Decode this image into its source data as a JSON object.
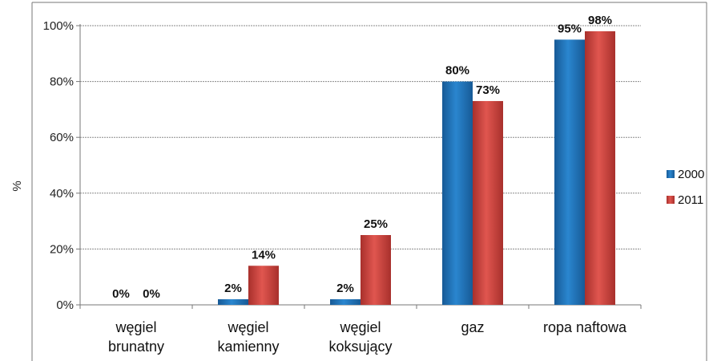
{
  "chart_data": {
    "type": "bar",
    "title": "",
    "xlabel": "",
    "ylabel": "%",
    "ylim": [
      0,
      100
    ],
    "yticks": [
      "0%",
      "20%",
      "40%",
      "60%",
      "80%",
      "100%"
    ],
    "ytick_values": [
      0,
      20,
      40,
      60,
      80,
      100
    ],
    "grid": true,
    "legend_position": "right",
    "categories": [
      [
        "węgiel",
        "brunatny"
      ],
      [
        "węgiel",
        "kamienny"
      ],
      [
        "węgiel",
        "koksujący"
      ],
      [
        "gaz"
      ],
      [
        "ropa naftowa"
      ]
    ],
    "series": [
      {
        "name": "2000",
        "color": "#1f6fb5",
        "values": [
          0,
          2,
          2,
          80,
          95
        ],
        "labels": [
          "0%",
          "2%",
          "2%",
          "80%",
          "95%"
        ]
      },
      {
        "name": "2011",
        "color": "#c8403b",
        "values": [
          0,
          14,
          25,
          73,
          98
        ],
        "labels": [
          "0%",
          "14%",
          "25%",
          "73%",
          "98%"
        ]
      }
    ]
  }
}
